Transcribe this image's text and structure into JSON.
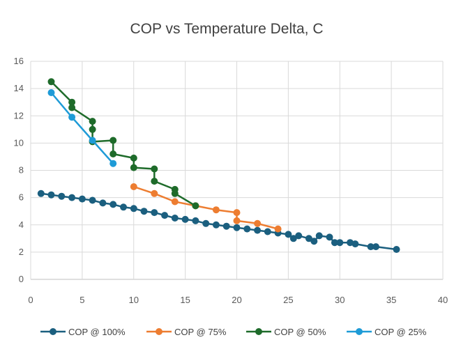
{
  "chart_data": {
    "type": "line",
    "title": "COP vs Temperature Delta, C",
    "xlabel": "",
    "ylabel": "",
    "xlim": [
      0,
      40
    ],
    "ylim": [
      0,
      16
    ],
    "x_ticks": [
      "0",
      "5",
      "10",
      "15",
      "20",
      "25",
      "30",
      "35",
      "40"
    ],
    "y_ticks": [
      "0",
      "2",
      "4",
      "6",
      "8",
      "10",
      "12",
      "14",
      "16"
    ],
    "grid": true,
    "legend_position": "bottom",
    "series": [
      {
        "name": "COP @ 100%",
        "color": "#1b5f7f",
        "points": [
          [
            1,
            6.3
          ],
          [
            2,
            6.2
          ],
          [
            3,
            6.1
          ],
          [
            4,
            6.0
          ],
          [
            5,
            5.9
          ],
          [
            6,
            5.8
          ],
          [
            7,
            5.6
          ],
          [
            8,
            5.5
          ],
          [
            9,
            5.3
          ],
          [
            10,
            5.2
          ],
          [
            11,
            5.0
          ],
          [
            12,
            4.9
          ],
          [
            13,
            4.7
          ],
          [
            14,
            4.5
          ],
          [
            15,
            4.4
          ],
          [
            16,
            4.3
          ],
          [
            17,
            4.1
          ],
          [
            18,
            4.0
          ],
          [
            19,
            3.9
          ],
          [
            20,
            3.8
          ],
          [
            21,
            3.7
          ],
          [
            22,
            3.6
          ],
          [
            23,
            3.5
          ],
          [
            24,
            3.4
          ],
          [
            25,
            3.3
          ],
          [
            25.5,
            3.0
          ],
          [
            26,
            3.2
          ],
          [
            27,
            3.0
          ],
          [
            27.5,
            2.8
          ],
          [
            28,
            3.2
          ],
          [
            29,
            3.1
          ],
          [
            29.5,
            2.7
          ],
          [
            30,
            2.7
          ],
          [
            31,
            2.7
          ],
          [
            31.5,
            2.6
          ],
          [
            33,
            2.4
          ],
          [
            33.5,
            2.4
          ],
          [
            35.5,
            2.2
          ]
        ]
      },
      {
        "name": "COP @ 75%",
        "color": "#ed7d31",
        "points": [
          [
            10,
            6.8
          ],
          [
            12,
            6.3
          ],
          [
            14,
            5.7
          ],
          [
            16,
            5.4
          ],
          [
            18,
            5.1
          ],
          [
            20,
            4.9
          ],
          [
            20,
            4.3
          ],
          [
            22,
            4.1
          ],
          [
            24,
            3.7
          ]
        ]
      },
      {
        "name": "COP @ 50%",
        "color": "#1e6b2a",
        "points": [
          [
            2,
            14.5
          ],
          [
            4,
            13.0
          ],
          [
            4,
            12.6
          ],
          [
            6,
            11.6
          ],
          [
            6,
            11.0
          ],
          [
            6,
            10.1
          ],
          [
            8,
            10.2
          ],
          [
            8,
            9.2
          ],
          [
            10,
            8.9
          ],
          [
            10,
            8.2
          ],
          [
            12,
            8.1
          ],
          [
            12,
            7.2
          ],
          [
            14,
            6.6
          ],
          [
            14,
            6.3
          ],
          [
            16,
            5.4
          ]
        ]
      },
      {
        "name": "COP @ 25%",
        "color": "#1e9bd7",
        "points": [
          [
            2,
            13.7
          ],
          [
            4,
            11.9
          ],
          [
            6,
            10.2
          ],
          [
            8,
            8.5
          ]
        ]
      }
    ]
  }
}
